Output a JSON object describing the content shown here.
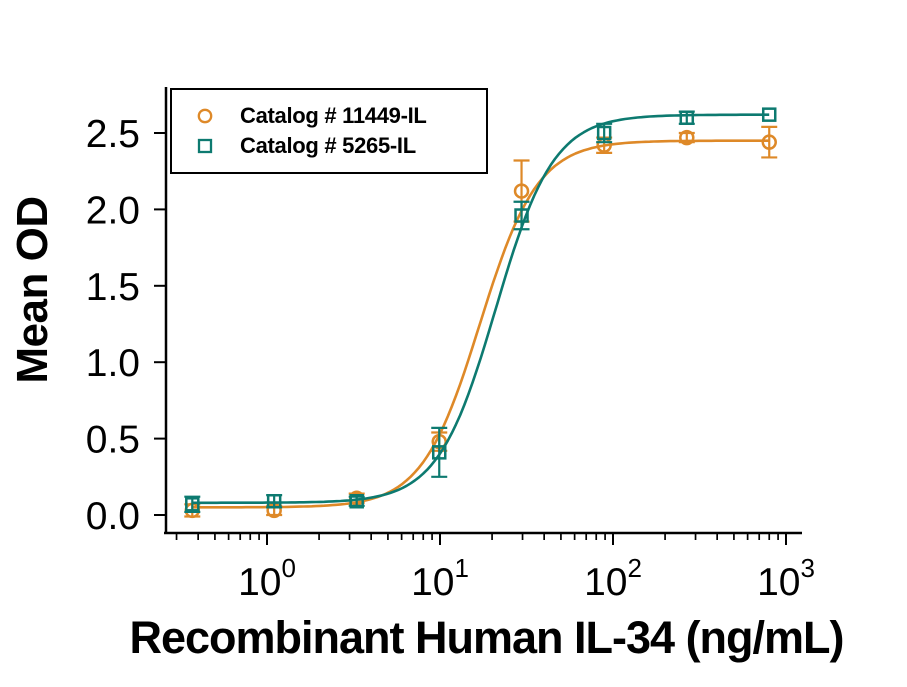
{
  "figure": {
    "xlabel": "Recombinant Human IL-34 (ng/mL)",
    "ylabel": "Mean OD"
  },
  "legend": {
    "position": "top-left",
    "items": [
      {
        "label": "Catalog # 11449-IL",
        "marker": "circle",
        "color": "#DE8928"
      },
      {
        "label": "Catalog # 5265-IL",
        "marker": "square",
        "color": "#0D7A70"
      }
    ]
  },
  "chart_data": {
    "type": "scatter",
    "title": "",
    "xlabel": "Recombinant Human IL-34 (ng/mL)",
    "ylabel": "Mean OD",
    "x_scale": "log",
    "xlim": [
      0.26,
      1300
    ],
    "ylim": [
      -0.12,
      2.8
    ],
    "grid": false,
    "x": [
      0.37,
      1.1,
      3.3,
      9.9,
      29.6,
      88.9,
      267,
      800
    ],
    "x_major_ticks": [
      1,
      10,
      100,
      1000
    ],
    "x_tick_labels": [
      "10⁰",
      "10¹",
      "10²",
      "10³"
    ],
    "yticks": [
      0.0,
      0.5,
      1.0,
      1.5,
      2.0,
      2.5
    ],
    "series": [
      {
        "id": "11449-IL",
        "name": "Catalog # 11449-IL",
        "marker": "circle",
        "color": "#DE8928",
        "values": [
          0.03,
          0.03,
          0.11,
          0.48,
          2.12,
          2.42,
          2.47,
          2.44
        ],
        "errors": [
          0.04,
          0.03,
          0.03,
          0.06,
          0.2,
          0.05,
          0.03,
          0.1
        ],
        "fit_4pl": {
          "bottom": 0.05,
          "top": 2.45,
          "ec50": 17,
          "hill": 2.6
        }
      },
      {
        "id": "5265-IL",
        "name": "Catalog # 5265-IL",
        "marker": "square",
        "color": "#0D7A70",
        "values": [
          0.07,
          0.09,
          0.09,
          0.41,
          1.96,
          2.5,
          2.6,
          2.62
        ],
        "errors": [
          0.05,
          0.04,
          0.03,
          0.16,
          0.09,
          0.06,
          0.04,
          0
        ],
        "fit_4pl": {
          "bottom": 0.08,
          "top": 2.62,
          "ec50": 21,
          "hill": 2.6
        }
      }
    ]
  }
}
